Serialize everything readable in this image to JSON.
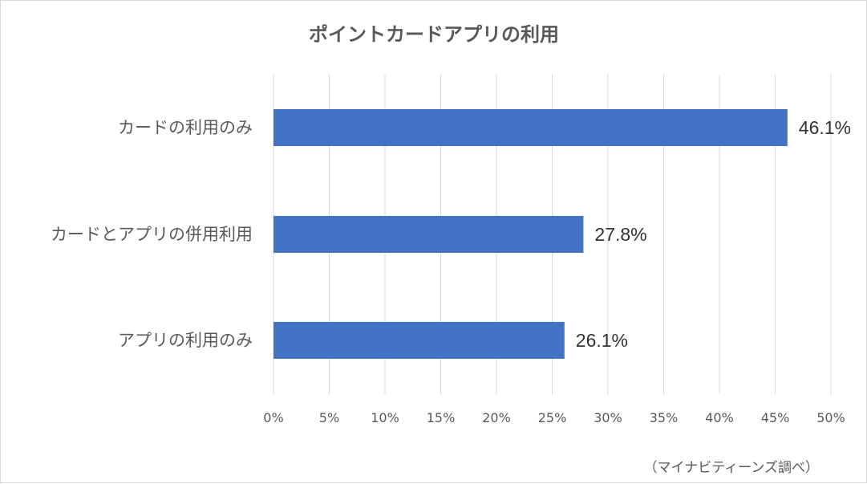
{
  "chart_data": {
    "type": "bar",
    "orientation": "horizontal",
    "title": "ポイントカードアプリの利用",
    "categories": [
      "カードの利用のみ",
      "カードとアプリの併用利用",
      "アプリの利用のみ"
    ],
    "values": [
      46.1,
      27.8,
      26.1
    ],
    "data_labels": [
      "46.1%",
      "27.8%",
      "26.1%"
    ],
    "xlim": [
      0,
      50
    ],
    "x_ticks": [
      0,
      5,
      10,
      15,
      20,
      25,
      30,
      35,
      40,
      45,
      50
    ],
    "x_tick_labels": [
      "0%",
      "5%",
      "10%",
      "15%",
      "20%",
      "25%",
      "30%",
      "35%",
      "40%",
      "45%",
      "50%"
    ],
    "grid": "vertical",
    "legend": "none",
    "bar_color": "#4472c4",
    "gridline_color": "#d9d9d9",
    "text_color": "#595959",
    "source_note": "（マイナビティーンズ調べ）"
  }
}
